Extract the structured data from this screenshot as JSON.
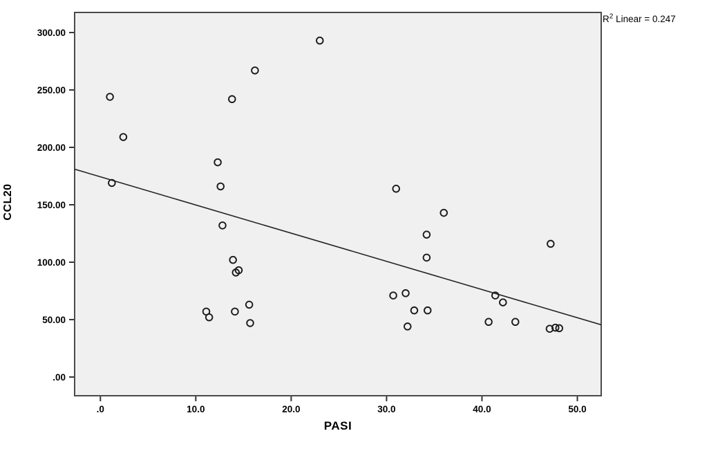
{
  "chart_data": {
    "type": "scatter",
    "title": "",
    "xlabel": "PASI",
    "ylabel": "CCL20",
    "annotation": {
      "base": "R",
      "sup": "2",
      "rest": " Linear = 0.247"
    },
    "r_squared_linear": 0.247,
    "xlim": [
      -2.7,
      52.5
    ],
    "ylim": [
      -16.3,
      317.5
    ],
    "grid": false,
    "x_ticks": [
      {
        "value": 0,
        "label": ".0"
      },
      {
        "value": 10,
        "label": "10.0"
      },
      {
        "value": 20,
        "label": "20.0"
      },
      {
        "value": 30,
        "label": "30.0"
      },
      {
        "value": 40,
        "label": "40.0"
      },
      {
        "value": 50,
        "label": "50.0"
      }
    ],
    "y_ticks": [
      {
        "value": 0,
        "label": ".00"
      },
      {
        "value": 50,
        "label": "50.00"
      },
      {
        "value": 100,
        "label": "100.00"
      },
      {
        "value": 150,
        "label": "150.00"
      },
      {
        "value": 200,
        "label": "200.00"
      },
      {
        "value": 250,
        "label": "250.00"
      },
      {
        "value": 300,
        "label": "300.00"
      }
    ],
    "points": [
      [
        1.0,
        244
      ],
      [
        2.4,
        209
      ],
      [
        1.2,
        169
      ],
      [
        23.0,
        293
      ],
      [
        16.2,
        267
      ],
      [
        13.8,
        242
      ],
      [
        12.3,
        187
      ],
      [
        12.6,
        166
      ],
      [
        12.8,
        132
      ],
      [
        13.9,
        102
      ],
      [
        14.2,
        91
      ],
      [
        14.5,
        93
      ],
      [
        15.6,
        63
      ],
      [
        14.1,
        57
      ],
      [
        11.1,
        57
      ],
      [
        11.4,
        52
      ],
      [
        15.7,
        47
      ],
      [
        31.0,
        164
      ],
      [
        36.0,
        143
      ],
      [
        34.2,
        124
      ],
      [
        34.2,
        104
      ],
      [
        30.7,
        71
      ],
      [
        32.0,
        73
      ],
      [
        32.9,
        58
      ],
      [
        34.3,
        58
      ],
      [
        32.2,
        44
      ],
      [
        47.2,
        116
      ],
      [
        41.4,
        71
      ],
      [
        42.2,
        65
      ],
      [
        40.7,
        48
      ],
      [
        43.5,
        48
      ],
      [
        47.1,
        42
      ],
      [
        47.7,
        43
      ],
      [
        48.1,
        42.5
      ]
    ],
    "trendline": {
      "x1": -2.7,
      "y1": 181.0,
      "x2": 52.5,
      "y2": 45.5
    },
    "colors": {
      "plot_bg": "#f0f0f0",
      "plot_border": "#4a4a4a",
      "marker_stroke": "#1a1a1a",
      "trend_line": "#262626",
      "tick": "#333333",
      "text": "#000000"
    }
  }
}
